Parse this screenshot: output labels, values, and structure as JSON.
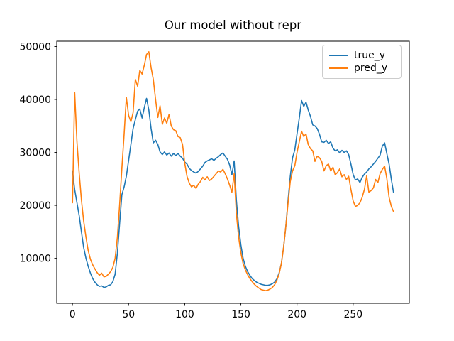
{
  "title": "Our model without repr",
  "legend": {
    "position": "upper right",
    "entries": [
      {
        "label": "true_y",
        "color": "#1f77b4"
      },
      {
        "label": "pred_y",
        "color": "#ff7f0e"
      }
    ]
  },
  "chart_data": {
    "type": "line",
    "title": "Our model without repr",
    "xlabel": "",
    "ylabel": "",
    "grid": false,
    "legend_position": "upper right",
    "xlim": [
      -14,
      300
    ],
    "ylim": [
      1500,
      51000
    ],
    "x_ticks": [
      0,
      50,
      100,
      150,
      200,
      250
    ],
    "y_ticks": [
      10000,
      20000,
      30000,
      40000,
      50000
    ],
    "x_start": 0,
    "x_step": 2,
    "series": [
      {
        "name": "true_y",
        "color": "#1f77b4",
        "values": [
          26500,
          23000,
          20500,
          18000,
          15000,
          12000,
          10000,
          8500,
          7200,
          6200,
          5500,
          5000,
          4700,
          4800,
          4500,
          4600,
          4900,
          5000,
          5600,
          7000,
          11000,
          16500,
          22000,
          23500,
          25500,
          28500,
          31500,
          34500,
          36200,
          37800,
          38200,
          36500,
          38500,
          40200,
          38000,
          34500,
          31800,
          32300,
          31500,
          30100,
          29600,
          30100,
          29500,
          29900,
          29300,
          29800,
          29400,
          29800,
          29300,
          28900,
          28200,
          27800,
          27000,
          26600,
          26300,
          26100,
          26400,
          26900,
          27400,
          28100,
          28400,
          28600,
          28800,
          28500,
          28900,
          29200,
          29600,
          29900,
          29300,
          28700,
          27600,
          25800,
          28400,
          21000,
          16000,
          12500,
          10000,
          8500,
          7500,
          6800,
          6200,
          5800,
          5500,
          5300,
          5100,
          5000,
          4900,
          4900,
          5000,
          5200,
          5500,
          6100,
          7200,
          9000,
          12000,
          16000,
          21000,
          25500,
          29000,
          30500,
          33500,
          36500,
          39800,
          38700,
          39500,
          38000,
          36800,
          35200,
          35000,
          34500,
          33400,
          32000,
          31900,
          32300,
          31700,
          32000,
          30800,
          30300,
          30500,
          29900,
          30400,
          30000,
          30300,
          29600,
          27800,
          25800,
          24800,
          25000,
          24300,
          25300,
          25900,
          26300,
          26900,
          27300,
          27800,
          28300,
          28900,
          29500,
          31200,
          31800,
          29800,
          27800,
          24900,
          22400
        ]
      },
      {
        "name": "pred_y",
        "color": "#ff7f0e",
        "values": [
          20500,
          41300,
          32000,
          26000,
          21000,
          17000,
          14000,
          11500,
          9800,
          8800,
          8000,
          7300,
          6800,
          7200,
          6500,
          6600,
          7000,
          7500,
          8300,
          10000,
          14000,
          20000,
          27000,
          33500,
          40400,
          37000,
          35800,
          37500,
          43800,
          42500,
          45500,
          44800,
          46500,
          48500,
          49000,
          46000,
          43800,
          40000,
          36600,
          38800,
          35300,
          36500,
          35500,
          37200,
          35000,
          34300,
          34100,
          33000,
          32800,
          31500,
          28000,
          25500,
          24200,
          23500,
          23800,
          23200,
          24000,
          24500,
          25300,
          24800,
          25400,
          24700,
          25000,
          25500,
          26000,
          26500,
          26300,
          26800,
          26000,
          25000,
          23800,
          22500,
          26000,
          18500,
          14000,
          11000,
          9000,
          7800,
          6900,
          6200,
          5600,
          5100,
          4700,
          4400,
          4100,
          4000,
          3900,
          4000,
          4200,
          4500,
          5000,
          5800,
          7000,
          9000,
          12000,
          16000,
          20500,
          24500,
          26500,
          27500,
          30000,
          32000,
          34000,
          33000,
          33500,
          31500,
          30700,
          30300,
          28300,
          29300,
          29000,
          28300,
          26500,
          27500,
          27800,
          26500,
          27200,
          25800,
          26200,
          26900,
          25400,
          25800,
          24900,
          25500,
          23000,
          20800,
          19800,
          20000,
          20500,
          21500,
          23000,
          25600,
          22500,
          22800,
          23300,
          24900,
          24300,
          26000,
          26800,
          27400,
          25100,
          21500,
          19800,
          18800
        ]
      }
    ]
  }
}
